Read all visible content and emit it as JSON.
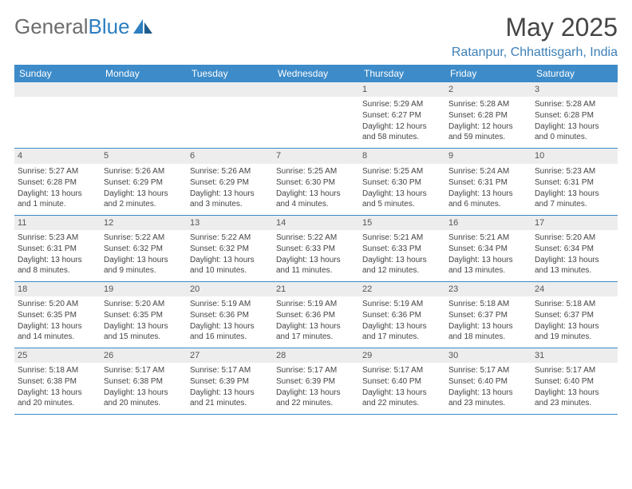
{
  "brand": {
    "part1": "General",
    "part2": "Blue"
  },
  "title": {
    "month_year": "May 2025",
    "location": "Ratanpur, Chhattisgarh, India"
  },
  "colors": {
    "header_bg": "#3d8bc9",
    "header_text": "#ffffff",
    "daynum_bg": "#ededed",
    "border": "#3d8bc9",
    "logo_gray": "#6d6d6d",
    "logo_blue": "#2d7fc1",
    "location_color": "#3d80b8",
    "body_text": "#444444"
  },
  "weekdays": [
    "Sunday",
    "Monday",
    "Tuesday",
    "Wednesday",
    "Thursday",
    "Friday",
    "Saturday"
  ],
  "weeks": [
    [
      {
        "n": "",
        "sr": "",
        "ss": "",
        "dl": ""
      },
      {
        "n": "",
        "sr": "",
        "ss": "",
        "dl": ""
      },
      {
        "n": "",
        "sr": "",
        "ss": "",
        "dl": ""
      },
      {
        "n": "",
        "sr": "",
        "ss": "",
        "dl": ""
      },
      {
        "n": "1",
        "sr": "Sunrise: 5:29 AM",
        "ss": "Sunset: 6:27 PM",
        "dl": "Daylight: 12 hours and 58 minutes."
      },
      {
        "n": "2",
        "sr": "Sunrise: 5:28 AM",
        "ss": "Sunset: 6:28 PM",
        "dl": "Daylight: 12 hours and 59 minutes."
      },
      {
        "n": "3",
        "sr": "Sunrise: 5:28 AM",
        "ss": "Sunset: 6:28 PM",
        "dl": "Daylight: 13 hours and 0 minutes."
      }
    ],
    [
      {
        "n": "4",
        "sr": "Sunrise: 5:27 AM",
        "ss": "Sunset: 6:28 PM",
        "dl": "Daylight: 13 hours and 1 minute."
      },
      {
        "n": "5",
        "sr": "Sunrise: 5:26 AM",
        "ss": "Sunset: 6:29 PM",
        "dl": "Daylight: 13 hours and 2 minutes."
      },
      {
        "n": "6",
        "sr": "Sunrise: 5:26 AM",
        "ss": "Sunset: 6:29 PM",
        "dl": "Daylight: 13 hours and 3 minutes."
      },
      {
        "n": "7",
        "sr": "Sunrise: 5:25 AM",
        "ss": "Sunset: 6:30 PM",
        "dl": "Daylight: 13 hours and 4 minutes."
      },
      {
        "n": "8",
        "sr": "Sunrise: 5:25 AM",
        "ss": "Sunset: 6:30 PM",
        "dl": "Daylight: 13 hours and 5 minutes."
      },
      {
        "n": "9",
        "sr": "Sunrise: 5:24 AM",
        "ss": "Sunset: 6:31 PM",
        "dl": "Daylight: 13 hours and 6 minutes."
      },
      {
        "n": "10",
        "sr": "Sunrise: 5:23 AM",
        "ss": "Sunset: 6:31 PM",
        "dl": "Daylight: 13 hours and 7 minutes."
      }
    ],
    [
      {
        "n": "11",
        "sr": "Sunrise: 5:23 AM",
        "ss": "Sunset: 6:31 PM",
        "dl": "Daylight: 13 hours and 8 minutes."
      },
      {
        "n": "12",
        "sr": "Sunrise: 5:22 AM",
        "ss": "Sunset: 6:32 PM",
        "dl": "Daylight: 13 hours and 9 minutes."
      },
      {
        "n": "13",
        "sr": "Sunrise: 5:22 AM",
        "ss": "Sunset: 6:32 PM",
        "dl": "Daylight: 13 hours and 10 minutes."
      },
      {
        "n": "14",
        "sr": "Sunrise: 5:22 AM",
        "ss": "Sunset: 6:33 PM",
        "dl": "Daylight: 13 hours and 11 minutes."
      },
      {
        "n": "15",
        "sr": "Sunrise: 5:21 AM",
        "ss": "Sunset: 6:33 PM",
        "dl": "Daylight: 13 hours and 12 minutes."
      },
      {
        "n": "16",
        "sr": "Sunrise: 5:21 AM",
        "ss": "Sunset: 6:34 PM",
        "dl": "Daylight: 13 hours and 13 minutes."
      },
      {
        "n": "17",
        "sr": "Sunrise: 5:20 AM",
        "ss": "Sunset: 6:34 PM",
        "dl": "Daylight: 13 hours and 13 minutes."
      }
    ],
    [
      {
        "n": "18",
        "sr": "Sunrise: 5:20 AM",
        "ss": "Sunset: 6:35 PM",
        "dl": "Daylight: 13 hours and 14 minutes."
      },
      {
        "n": "19",
        "sr": "Sunrise: 5:20 AM",
        "ss": "Sunset: 6:35 PM",
        "dl": "Daylight: 13 hours and 15 minutes."
      },
      {
        "n": "20",
        "sr": "Sunrise: 5:19 AM",
        "ss": "Sunset: 6:36 PM",
        "dl": "Daylight: 13 hours and 16 minutes."
      },
      {
        "n": "21",
        "sr": "Sunrise: 5:19 AM",
        "ss": "Sunset: 6:36 PM",
        "dl": "Daylight: 13 hours and 17 minutes."
      },
      {
        "n": "22",
        "sr": "Sunrise: 5:19 AM",
        "ss": "Sunset: 6:36 PM",
        "dl": "Daylight: 13 hours and 17 minutes."
      },
      {
        "n": "23",
        "sr": "Sunrise: 5:18 AM",
        "ss": "Sunset: 6:37 PM",
        "dl": "Daylight: 13 hours and 18 minutes."
      },
      {
        "n": "24",
        "sr": "Sunrise: 5:18 AM",
        "ss": "Sunset: 6:37 PM",
        "dl": "Daylight: 13 hours and 19 minutes."
      }
    ],
    [
      {
        "n": "25",
        "sr": "Sunrise: 5:18 AM",
        "ss": "Sunset: 6:38 PM",
        "dl": "Daylight: 13 hours and 20 minutes."
      },
      {
        "n": "26",
        "sr": "Sunrise: 5:17 AM",
        "ss": "Sunset: 6:38 PM",
        "dl": "Daylight: 13 hours and 20 minutes."
      },
      {
        "n": "27",
        "sr": "Sunrise: 5:17 AM",
        "ss": "Sunset: 6:39 PM",
        "dl": "Daylight: 13 hours and 21 minutes."
      },
      {
        "n": "28",
        "sr": "Sunrise: 5:17 AM",
        "ss": "Sunset: 6:39 PM",
        "dl": "Daylight: 13 hours and 22 minutes."
      },
      {
        "n": "29",
        "sr": "Sunrise: 5:17 AM",
        "ss": "Sunset: 6:40 PM",
        "dl": "Daylight: 13 hours and 22 minutes."
      },
      {
        "n": "30",
        "sr": "Sunrise: 5:17 AM",
        "ss": "Sunset: 6:40 PM",
        "dl": "Daylight: 13 hours and 23 minutes."
      },
      {
        "n": "31",
        "sr": "Sunrise: 5:17 AM",
        "ss": "Sunset: 6:40 PM",
        "dl": "Daylight: 13 hours and 23 minutes."
      }
    ]
  ]
}
